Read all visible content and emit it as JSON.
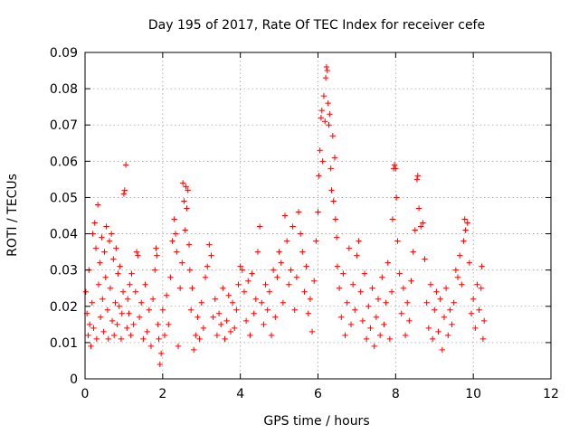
{
  "chart_data": {
    "type": "scatter",
    "title": "Day 195 of 2017, Rate Of TEC Index for receiver cefe",
    "xlabel": "GPS time / hours",
    "ylabel": "ROTI / TECUs",
    "xlim": [
      0,
      12
    ],
    "ylim": [
      0,
      0.09
    ],
    "xticks": [
      0,
      2,
      4,
      6,
      8,
      10,
      12
    ],
    "yticks": [
      0,
      0.01,
      0.02,
      0.03,
      0.04,
      0.05,
      0.06,
      0.07,
      0.08,
      0.09
    ],
    "xtick_labels": [
      "0",
      "2",
      "4",
      "6",
      "8",
      "10",
      "12"
    ],
    "ytick_labels": [
      "0",
      "0.01",
      "0.02",
      "0.03",
      "0.04",
      "0.05",
      "0.06",
      "0.07",
      "0.08",
      "0.09"
    ],
    "grid": true,
    "marker": "+",
    "color": "#ff0000",
    "series": [
      {
        "name": "ROTI",
        "points": [
          [
            0.02,
            0.024
          ],
          [
            0.05,
            0.018
          ],
          [
            0.08,
            0.012
          ],
          [
            0.1,
            0.03
          ],
          [
            0.12,
            0.015
          ],
          [
            0.15,
            0.009
          ],
          [
            0.18,
            0.021
          ],
          [
            0.2,
            0.04
          ],
          [
            0.22,
            0.014
          ],
          [
            0.25,
            0.043
          ],
          [
            0.28,
            0.036
          ],
          [
            0.3,
            0.011
          ],
          [
            0.33,
            0.048
          ],
          [
            0.35,
            0.026
          ],
          [
            0.38,
            0.032
          ],
          [
            0.4,
            0.017
          ],
          [
            0.43,
            0.039
          ],
          [
            0.45,
            0.022
          ],
          [
            0.48,
            0.013
          ],
          [
            0.5,
            0.035
          ],
          [
            0.53,
            0.028
          ],
          [
            0.55,
            0.042
          ],
          [
            0.58,
            0.019
          ],
          [
            0.6,
            0.011
          ],
          [
            0.63,
            0.038
          ],
          [
            0.65,
            0.025
          ],
          [
            0.68,
            0.04
          ],
          [
            0.7,
            0.016
          ],
          [
            0.73,
            0.033
          ],
          [
            0.75,
            0.012
          ],
          [
            0.78,
            0.021
          ],
          [
            0.8,
            0.036
          ],
          [
            0.83,
            0.015
          ],
          [
            0.85,
            0.029
          ],
          [
            0.88,
            0.02
          ],
          [
            0.9,
            0.031
          ],
          [
            0.93,
            0.011
          ],
          [
            0.95,
            0.018
          ],
          [
            0.98,
            0.024
          ],
          [
            1.0,
            0.051
          ],
          [
            1.02,
            0.052
          ],
          [
            1.05,
            0.059
          ],
          [
            1.08,
            0.014
          ],
          [
            1.1,
            0.022
          ],
          [
            1.13,
            0.018
          ],
          [
            1.15,
            0.026
          ],
          [
            1.18,
            0.012
          ],
          [
            1.2,
            0.029
          ],
          [
            1.25,
            0.015
          ],
          [
            1.3,
            0.024
          ],
          [
            1.33,
            0.035
          ],
          [
            1.36,
            0.034
          ],
          [
            1.4,
            0.017
          ],
          [
            1.45,
            0.021
          ],
          [
            1.5,
            0.011
          ],
          [
            1.55,
            0.026
          ],
          [
            1.6,
            0.013
          ],
          [
            1.65,
            0.019
          ],
          [
            1.7,
            0.009
          ],
          [
            1.75,
            0.022
          ],
          [
            1.8,
            0.03
          ],
          [
            1.83,
            0.036
          ],
          [
            1.85,
            0.034
          ],
          [
            1.88,
            0.015
          ],
          [
            1.9,
            0.011
          ],
          [
            1.93,
            0.004
          ],
          [
            1.96,
            0.007
          ],
          [
            2.0,
            0.019
          ],
          [
            2.05,
            0.012
          ],
          [
            2.1,
            0.023
          ],
          [
            2.15,
            0.015
          ],
          [
            2.2,
            0.028
          ],
          [
            2.25,
            0.038
          ],
          [
            2.3,
            0.044
          ],
          [
            2.33,
            0.04
          ],
          [
            2.36,
            0.035
          ],
          [
            2.4,
            0.009
          ],
          [
            2.45,
            0.025
          ],
          [
            2.5,
            0.032
          ],
          [
            2.52,
            0.054
          ],
          [
            2.55,
            0.049
          ],
          [
            2.58,
            0.041
          ],
          [
            2.6,
            0.053
          ],
          [
            2.62,
            0.047
          ],
          [
            2.65,
            0.052
          ],
          [
            2.68,
            0.037
          ],
          [
            2.7,
            0.03
          ],
          [
            2.73,
            0.019
          ],
          [
            2.76,
            0.025
          ],
          [
            2.8,
            0.008
          ],
          [
            2.85,
            0.012
          ],
          [
            2.9,
            0.017
          ],
          [
            2.95,
            0.011
          ],
          [
            3.0,
            0.021
          ],
          [
            3.05,
            0.014
          ],
          [
            3.1,
            0.028
          ],
          [
            3.15,
            0.031
          ],
          [
            3.2,
            0.037
          ],
          [
            3.25,
            0.034
          ],
          [
            3.3,
            0.017
          ],
          [
            3.35,
            0.022
          ],
          [
            3.4,
            0.012
          ],
          [
            3.45,
            0.018
          ],
          [
            3.5,
            0.015
          ],
          [
            3.55,
            0.025
          ],
          [
            3.6,
            0.011
          ],
          [
            3.65,
            0.016
          ],
          [
            3.7,
            0.023
          ],
          [
            3.75,
            0.013
          ],
          [
            3.8,
            0.021
          ],
          [
            3.85,
            0.014
          ],
          [
            3.9,
            0.019
          ],
          [
            3.95,
            0.026
          ],
          [
            4.0,
            0.031
          ],
          [
            4.05,
            0.03
          ],
          [
            4.1,
            0.024
          ],
          [
            4.15,
            0.016
          ],
          [
            4.2,
            0.027
          ],
          [
            4.25,
            0.012
          ],
          [
            4.3,
            0.029
          ],
          [
            4.35,
            0.018
          ],
          [
            4.4,
            0.022
          ],
          [
            4.45,
            0.035
          ],
          [
            4.5,
            0.042
          ],
          [
            4.55,
            0.021
          ],
          [
            4.6,
            0.015
          ],
          [
            4.65,
            0.026
          ],
          [
            4.7,
            0.019
          ],
          [
            4.75,
            0.024
          ],
          [
            4.8,
            0.012
          ],
          [
            4.85,
            0.03
          ],
          [
            4.9,
            0.017
          ],
          [
            4.95,
            0.028
          ],
          [
            5.0,
            0.035
          ],
          [
            5.05,
            0.032
          ],
          [
            5.1,
            0.021
          ],
          [
            5.15,
            0.045
          ],
          [
            5.2,
            0.038
          ],
          [
            5.25,
            0.026
          ],
          [
            5.3,
            0.03
          ],
          [
            5.35,
            0.042
          ],
          [
            5.4,
            0.019
          ],
          [
            5.45,
            0.028
          ],
          [
            5.5,
            0.046
          ],
          [
            5.55,
            0.04
          ],
          [
            5.6,
            0.035
          ],
          [
            5.65,
            0.024
          ],
          [
            5.7,
            0.031
          ],
          [
            5.75,
            0.018
          ],
          [
            5.8,
            0.022
          ],
          [
            5.85,
            0.013
          ],
          [
            5.9,
            0.027
          ],
          [
            5.95,
            0.038
          ],
          [
            6.0,
            0.046
          ],
          [
            6.02,
            0.056
          ],
          [
            6.05,
            0.063
          ],
          [
            6.08,
            0.072
          ],
          [
            6.1,
            0.074
          ],
          [
            6.12,
            0.06
          ],
          [
            6.15,
            0.078
          ],
          [
            6.18,
            0.071
          ],
          [
            6.2,
            0.083
          ],
          [
            6.22,
            0.086
          ],
          [
            6.24,
            0.085
          ],
          [
            6.26,
            0.076
          ],
          [
            6.28,
            0.07
          ],
          [
            6.3,
            0.073
          ],
          [
            6.33,
            0.058
          ],
          [
            6.35,
            0.052
          ],
          [
            6.38,
            0.067
          ],
          [
            6.4,
            0.049
          ],
          [
            6.43,
            0.061
          ],
          [
            6.45,
            0.044
          ],
          [
            6.48,
            0.039
          ],
          [
            6.5,
            0.031
          ],
          [
            6.55,
            0.025
          ],
          [
            6.6,
            0.017
          ],
          [
            6.65,
            0.029
          ],
          [
            6.7,
            0.012
          ],
          [
            6.75,
            0.021
          ],
          [
            6.8,
            0.036
          ],
          [
            6.85,
            0.015
          ],
          [
            6.9,
            0.026
          ],
          [
            6.95,
            0.019
          ],
          [
            7.0,
            0.034
          ],
          [
            7.05,
            0.038
          ],
          [
            7.1,
            0.024
          ],
          [
            7.15,
            0.016
          ],
          [
            7.2,
            0.029
          ],
          [
            7.25,
            0.011
          ],
          [
            7.3,
            0.02
          ],
          [
            7.35,
            0.014
          ],
          [
            7.4,
            0.025
          ],
          [
            7.45,
            0.009
          ],
          [
            7.5,
            0.017
          ],
          [
            7.55,
            0.022
          ],
          [
            7.6,
            0.012
          ],
          [
            7.65,
            0.028
          ],
          [
            7.7,
            0.015
          ],
          [
            7.75,
            0.021
          ],
          [
            7.8,
            0.032
          ],
          [
            7.85,
            0.011
          ],
          [
            7.9,
            0.024
          ],
          [
            7.92,
            0.044
          ],
          [
            7.95,
            0.058
          ],
          [
            7.97,
            0.059
          ],
          [
            8.0,
            0.058
          ],
          [
            8.02,
            0.05
          ],
          [
            8.05,
            0.038
          ],
          [
            8.1,
            0.029
          ],
          [
            8.15,
            0.018
          ],
          [
            8.2,
            0.025
          ],
          [
            8.25,
            0.012
          ],
          [
            8.3,
            0.021
          ],
          [
            8.35,
            0.016
          ],
          [
            8.4,
            0.027
          ],
          [
            8.45,
            0.035
          ],
          [
            8.5,
            0.041
          ],
          [
            8.55,
            0.055
          ],
          [
            8.57,
            0.056
          ],
          [
            8.6,
            0.047
          ],
          [
            8.65,
            0.042
          ],
          [
            8.7,
            0.043
          ],
          [
            8.75,
            0.033
          ],
          [
            8.8,
            0.021
          ],
          [
            8.85,
            0.014
          ],
          [
            8.9,
            0.026
          ],
          [
            8.95,
            0.011
          ],
          [
            9.0,
            0.019
          ],
          [
            9.05,
            0.024
          ],
          [
            9.1,
            0.013
          ],
          [
            9.15,
            0.022
          ],
          [
            9.2,
            0.008
          ],
          [
            9.25,
            0.017
          ],
          [
            9.3,
            0.025
          ],
          [
            9.35,
            0.012
          ],
          [
            9.4,
            0.019
          ],
          [
            9.45,
            0.015
          ],
          [
            9.5,
            0.021
          ],
          [
            9.55,
            0.03
          ],
          [
            9.6,
            0.028
          ],
          [
            9.65,
            0.034
          ],
          [
            9.7,
            0.026
          ],
          [
            9.75,
            0.038
          ],
          [
            9.78,
            0.044
          ],
          [
            9.8,
            0.041
          ],
          [
            9.85,
            0.043
          ],
          [
            9.9,
            0.032
          ],
          [
            9.95,
            0.018
          ],
          [
            10.0,
            0.022
          ],
          [
            10.05,
            0.014
          ],
          [
            10.1,
            0.026
          ],
          [
            10.15,
            0.019
          ],
          [
            10.2,
            0.025
          ],
          [
            10.22,
            0.031
          ],
          [
            10.25,
            0.011
          ],
          [
            10.28,
            0.016
          ]
        ]
      }
    ]
  }
}
